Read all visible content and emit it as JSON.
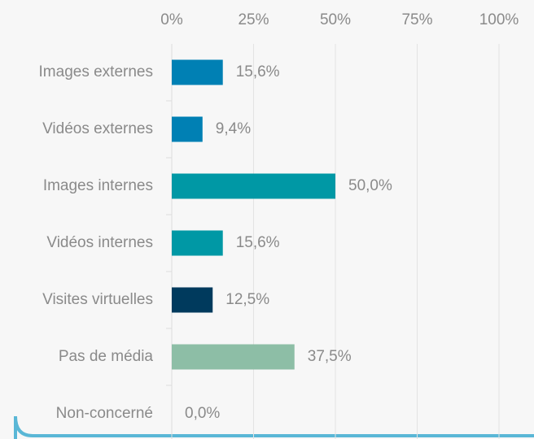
{
  "chart_data": {
    "type": "bar",
    "orientation": "horizontal",
    "categories": [
      "Images externes",
      "Vidéos externes",
      "Images internes",
      "Vidéos internes",
      "Visites virtuelles",
      "Pas de média",
      "Non-concerné"
    ],
    "values": [
      15.6,
      9.4,
      50.0,
      15.6,
      12.5,
      37.5,
      0.0
    ],
    "value_labels": [
      "15,6%",
      "9,4%",
      "50,0%",
      "15,6%",
      "12,5%",
      "37,5%",
      "0,0%"
    ],
    "colors": [
      "#0080b4",
      "#0080b4",
      "#0098a5",
      "#0098a5",
      "#003a5d",
      "#8dbea6",
      "#8dbea6"
    ],
    "xlim": [
      0,
      100
    ],
    "xticks": [
      {
        "value": 0,
        "label": "0%"
      },
      {
        "value": 25,
        "label": "25%"
      },
      {
        "value": 50,
        "label": "50%"
      },
      {
        "value": 75,
        "label": "75%"
      },
      {
        "value": 100,
        "label": "100%"
      }
    ],
    "grid": true
  }
}
